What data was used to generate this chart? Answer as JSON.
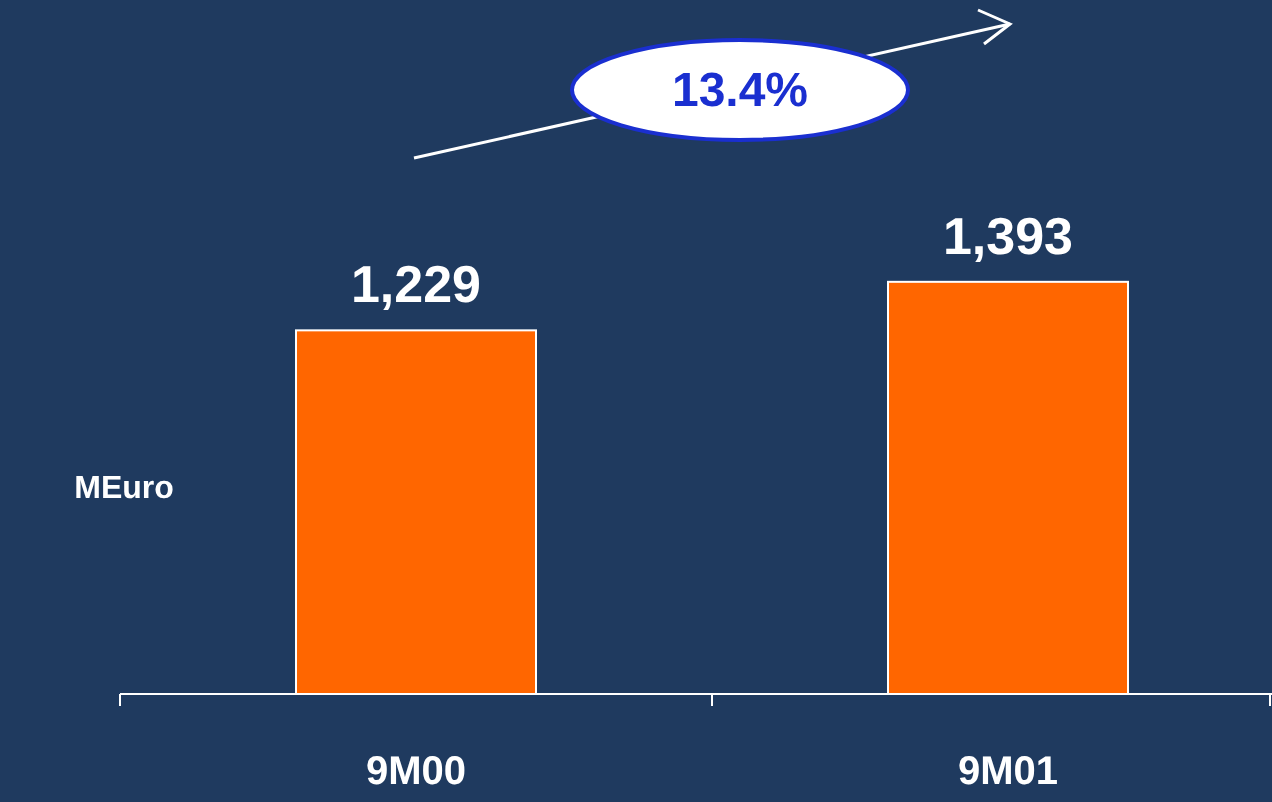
{
  "chart_data": {
    "type": "bar",
    "categories": [
      "9M00",
      "9M01"
    ],
    "values": [
      1229,
      1393
    ],
    "color": "#ff6600",
    "value_labels": [
      "1,229",
      "1,393"
    ],
    "ylabel": "MEuro",
    "annotations": [
      "13.4%"
    ]
  }
}
